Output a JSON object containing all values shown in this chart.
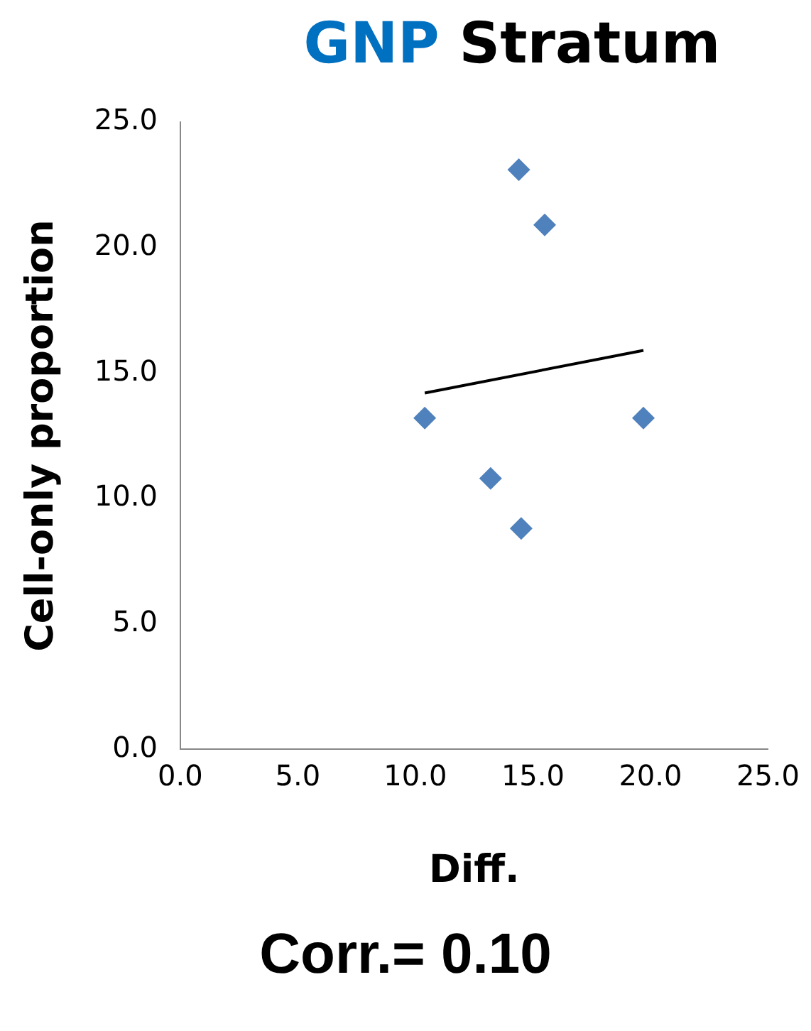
{
  "chart_data": {
    "type": "scatter",
    "title": "GNP Stratum",
    "xlabel": "Diff.",
    "ylabel": "Cell-only proportion",
    "annotations": [
      "Corr.= 0.10"
    ],
    "x": [
      14.4,
      15.5,
      10.4,
      13.2,
      14.5,
      19.7
    ],
    "series": [
      {
        "type": "scatter",
        "color": "#4f81bd",
        "marker": "diamond",
        "values": [
          23.1,
          20.9,
          13.2,
          10.8,
          8.8,
          13.2
        ]
      },
      {
        "type": "line",
        "color": "#000000",
        "x": [
          10.4,
          19.7
        ],
        "values": [
          14.2,
          15.9
        ]
      }
    ],
    "xlim": [
      0,
      25
    ],
    "ylim": [
      0,
      25
    ],
    "xticks": [
      {
        "value": 0,
        "label": "0.0"
      },
      {
        "value": 5,
        "label": "5.0"
      },
      {
        "value": 10,
        "label": "10.0"
      },
      {
        "value": 15,
        "label": "15.0"
      },
      {
        "value": 20,
        "label": "20.0"
      },
      {
        "value": 25,
        "label": "25.0"
      }
    ],
    "yticks": [
      {
        "value": 0,
        "label": "0.0"
      },
      {
        "value": 5,
        "label": "5.0"
      },
      {
        "value": 10,
        "label": "10.0"
      },
      {
        "value": 15,
        "label": "15.0"
      },
      {
        "value": 20,
        "label": "20.0"
      },
      {
        "value": 25,
        "label": "25.0"
      }
    ],
    "grid": false,
    "legend": false
  }
}
